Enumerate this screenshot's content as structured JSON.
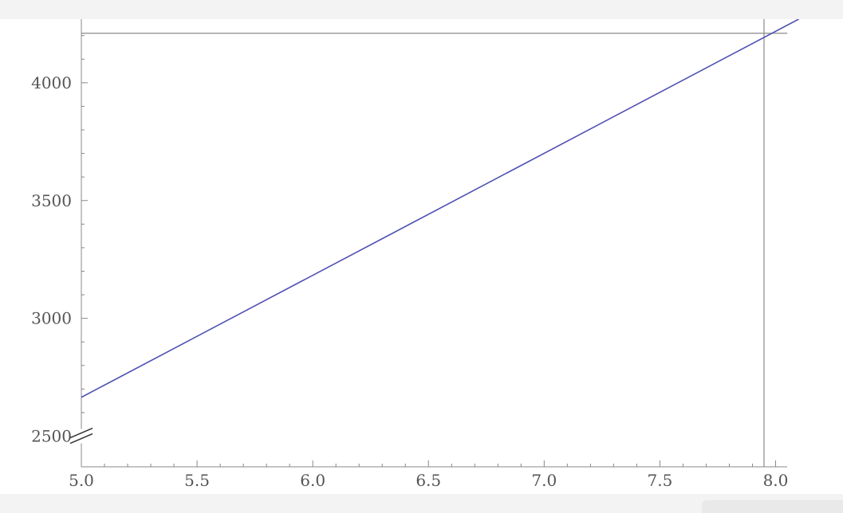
{
  "chart_data": {
    "type": "line",
    "title": "",
    "xlabel": "",
    "ylabel": "",
    "x_ticks": [
      "5.0",
      "5.5",
      "6.0",
      "6.5",
      "7.0",
      "7.5",
      "8.0"
    ],
    "y_ticks": [
      "2500",
      "3000",
      "3500",
      "4000"
    ],
    "xlim": [
      5.0,
      8.05
    ],
    "ylim": [
      2370,
      4270
    ],
    "y_axis_break": true,
    "grid": false,
    "series": [
      {
        "x": [
          5.0,
          8.1
        ],
        "y": [
          2665,
          4270
        ],
        "color": "#5050b4"
      }
    ],
    "reference_lines": {
      "x": 7.95,
      "y": 4210
    },
    "colors": {
      "line": "#5050b4",
      "axis": "#888888",
      "reference": "#8a8a8a",
      "tick_label": "#555555"
    }
  }
}
